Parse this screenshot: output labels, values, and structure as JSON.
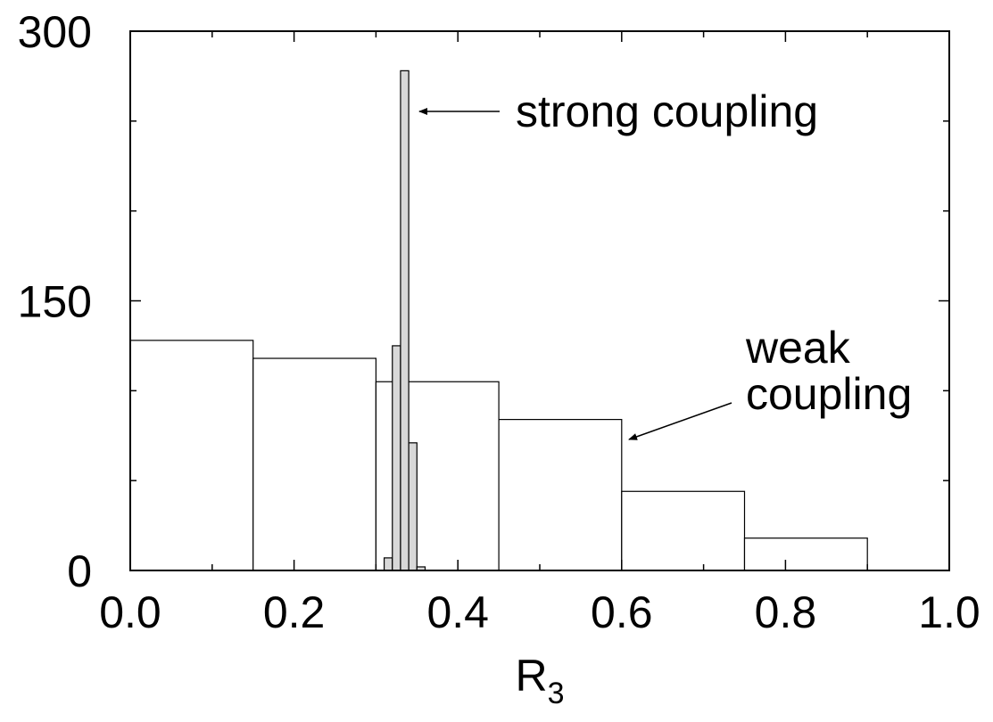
{
  "chart_data": {
    "type": "bar",
    "xlabel": "R",
    "xlabel_subscript": "3",
    "ylabel": "",
    "title": "",
    "xlim": [
      0.0,
      1.0
    ],
    "ylim": [
      0,
      300
    ],
    "x_ticks": [
      "0.0",
      "0.2",
      "0.4",
      "0.6",
      "0.8",
      "1.0"
    ],
    "y_ticks": [
      "0",
      "150",
      "300"
    ],
    "grid": false,
    "series": [
      {
        "name": "weak coupling",
        "fill": "#ffffff",
        "bins": [
          {
            "x0": 0.0,
            "x1": 0.15,
            "value": 128
          },
          {
            "x0": 0.15,
            "x1": 0.3,
            "value": 118
          },
          {
            "x0": 0.3,
            "x1": 0.45,
            "value": 105
          },
          {
            "x0": 0.45,
            "x1": 0.6,
            "value": 84
          },
          {
            "x0": 0.6,
            "x1": 0.75,
            "value": 44
          },
          {
            "x0": 0.75,
            "x1": 0.9,
            "value": 18
          }
        ]
      },
      {
        "name": "strong coupling",
        "fill": "#d8d8d8",
        "bins": [
          {
            "x0": 0.31,
            "x1": 0.32,
            "value": 7
          },
          {
            "x0": 0.32,
            "x1": 0.33,
            "value": 125
          },
          {
            "x0": 0.33,
            "x1": 0.34,
            "value": 278
          },
          {
            "x0": 0.34,
            "x1": 0.35,
            "value": 71
          },
          {
            "x0": 0.35,
            "x1": 0.36,
            "value": 2
          }
        ]
      }
    ],
    "annotations": [
      {
        "lines": [
          "strong coupling"
        ]
      },
      {
        "lines": [
          "weak",
          "coupling"
        ]
      }
    ]
  }
}
